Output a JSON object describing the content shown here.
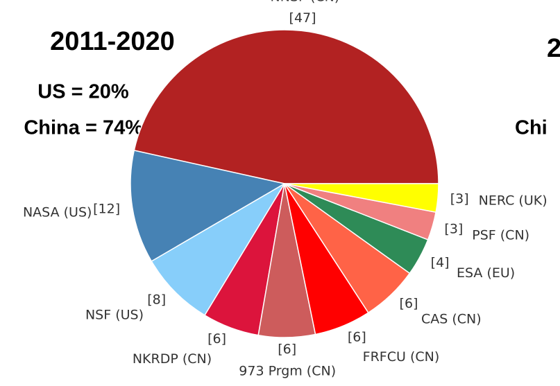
{
  "chart_data": {
    "type": "pie",
    "title": "2011-2020",
    "annotations": [
      "US = 20%",
      "China = 74%",
      "2",
      "Chi"
    ],
    "categories": [
      "NNSF (CN)",
      "NASA (US)",
      "NSF (US)",
      "NKRDP (CN)",
      "973 Prgm (CN)",
      "FRFCU (CN)",
      "CAS (CN)",
      "ESA (EU)",
      "PSF (CN)",
      "NERC (UK)"
    ],
    "values": [
      47,
      12,
      8,
      6,
      6,
      6,
      6,
      4,
      3,
      3
    ],
    "value_labels": [
      "[47]",
      "[12]",
      "[8]",
      "[6]",
      "[6]",
      "[6]",
      "[6]",
      "[4]",
      "[3]",
      "[3]"
    ],
    "colors": [
      "#b22222",
      "#4682b4",
      "#87cefa",
      "#dc143c",
      "#cd5c5c",
      "#ff0000",
      "#ff6347",
      "#2e8b57",
      "#f08080",
      "#ffff00"
    ]
  }
}
